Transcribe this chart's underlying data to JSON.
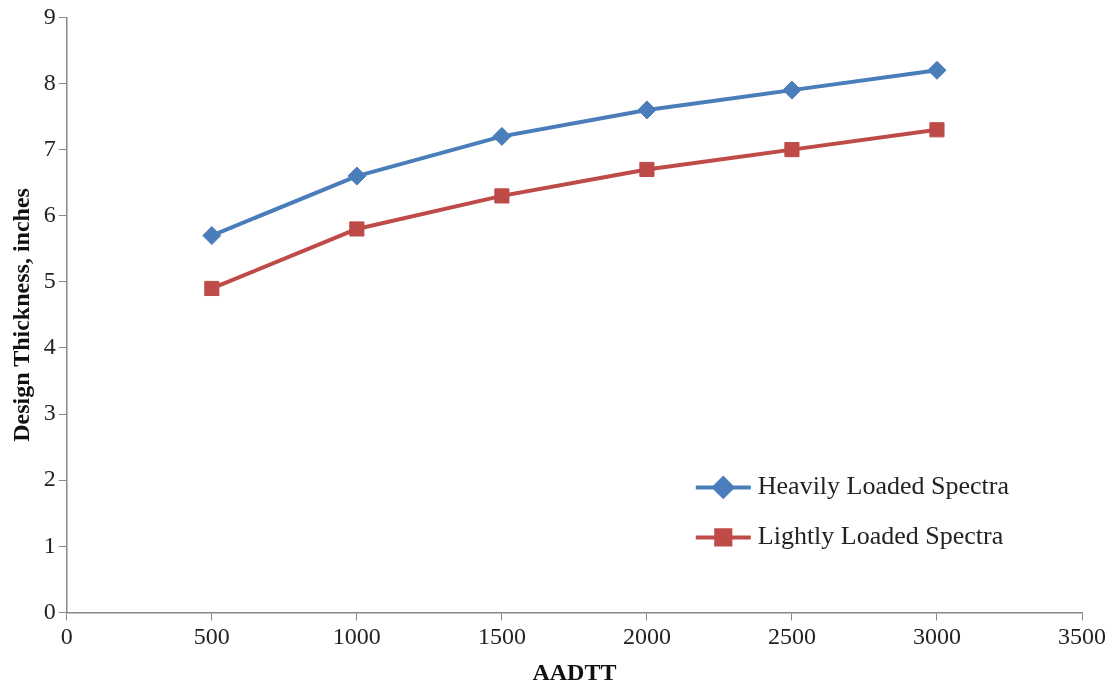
{
  "chart_data": {
    "type": "line",
    "xlabel": "AADTT",
    "ylabel": "Design Thickness, inches",
    "x": [
      500,
      1000,
      1500,
      2000,
      2500,
      3000
    ],
    "series": [
      {
        "name": "Heavily Loaded Spectra",
        "color": "#4a7ebb",
        "marker": "diamond",
        "values": [
          5.7,
          6.6,
          7.2,
          7.6,
          7.9,
          8.2
        ]
      },
      {
        "name": "Lightly Loaded Spectra",
        "color": "#be4b48",
        "marker": "square",
        "values": [
          4.9,
          5.8,
          6.3,
          6.7,
          7.0,
          7.3
        ]
      }
    ],
    "xlim": [
      0,
      3500
    ],
    "xticks": [
      0,
      500,
      1000,
      1500,
      2000,
      2500,
      3000,
      3500
    ],
    "ylim": [
      0,
      9
    ],
    "yticks": [
      0,
      1,
      2,
      3,
      4,
      5,
      6,
      7,
      8,
      9
    ],
    "grid": false,
    "legend": "bottom right",
    "line_style": "solid"
  }
}
